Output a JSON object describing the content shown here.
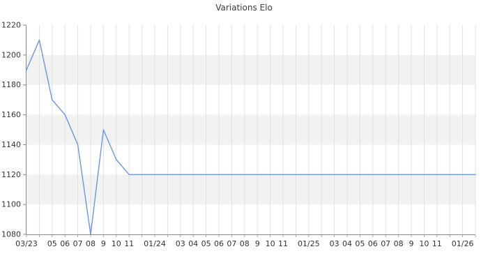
{
  "title": "Variations Elo",
  "colors": {
    "background": "#ffffff",
    "line": "#6c96e0",
    "band": "#f2f2f2",
    "grid": "#e0e0e0",
    "axis": "#878787",
    "tick": "#a8a8a8",
    "label_text": "#333333",
    "title_text": "#3c3c3c"
  },
  "chart_data": {
    "type": "line",
    "title": "Variations Elo",
    "xlabel": "",
    "ylabel": "",
    "legend": "none",
    "grid": true,
    "ylim": [
      1080,
      1220
    ],
    "y_ticks": [
      1080,
      1100,
      1120,
      1140,
      1160,
      1180,
      1200,
      1220
    ],
    "shaded_bands": [
      [
        1180,
        1200
      ],
      [
        1140,
        1160
      ],
      [
        1100,
        1120
      ]
    ],
    "x_axis": {
      "unit": "month",
      "start": "03/23",
      "end": "02/26",
      "tick_labels": [
        "03/23",
        "",
        "05",
        "06",
        "07",
        "08",
        "9",
        "10",
        "11",
        "",
        "01/24",
        "",
        "03",
        "04",
        "05",
        "06",
        "07",
        "08",
        "9",
        "10",
        "11",
        "",
        "01/25",
        "",
        "03",
        "04",
        "05",
        "06",
        "07",
        "08",
        "9",
        "10",
        "11",
        "",
        "01/26",
        ""
      ]
    },
    "series": [
      {
        "name": "Elo",
        "points": [
          {
            "x": 0,
            "month": "03/23",
            "y": 1190
          },
          {
            "x": 1,
            "month": "04/23",
            "y": 1210
          },
          {
            "x": 2,
            "month": "05/23",
            "y": 1170
          },
          {
            "x": 3,
            "month": "06/23",
            "y": 1160
          },
          {
            "x": 4,
            "month": "07/23",
            "y": 1140
          },
          {
            "x": 5,
            "month": "08/23",
            "y": 1080
          },
          {
            "x": 6,
            "month": "09/23",
            "y": 1150
          },
          {
            "x": 7,
            "month": "10/23",
            "y": 1130
          },
          {
            "x": 8,
            "month": "11/23",
            "y": 1120
          },
          {
            "x": 35,
            "month": "02/26",
            "y": 1120
          }
        ]
      }
    ]
  }
}
